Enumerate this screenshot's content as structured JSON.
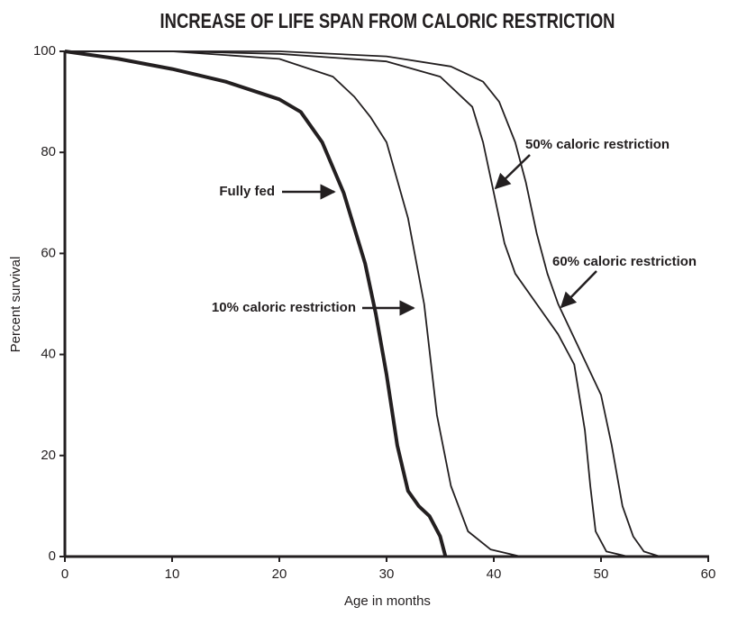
{
  "chart_data": {
    "type": "line",
    "title": "INCREASE OF LIFE SPAN FROM CALORIC RESTRICTION",
    "x_label": "Age in months",
    "y_label": "Percent survival",
    "xlim": [
      0,
      60
    ],
    "xticks": [
      0,
      10,
      20,
      30,
      40,
      50,
      60
    ],
    "ylim": [
      0,
      100
    ],
    "yticks": [
      0,
      20,
      40,
      60,
      80,
      100
    ],
    "grid": false,
    "series": [
      {
        "name": "Fully fed",
        "color": "#231f20",
        "line_width": 4,
        "x": [
          0,
          5,
          10,
          15,
          20,
          22,
          24,
          26,
          28,
          29,
          30,
          31,
          32,
          33,
          34,
          35,
          35.5
        ],
        "values": [
          100,
          98.5,
          96.5,
          94,
          90.5,
          88,
          82,
          72,
          58,
          48,
          36,
          22,
          13,
          10,
          8,
          4,
          0
        ]
      },
      {
        "name": "10% caloric restriction",
        "color": "#231f20",
        "line_width": 1.8,
        "x": [
          0,
          10,
          20,
          25,
          27,
          28.5,
          30,
          32,
          33.5,
          34.7,
          36,
          37.6,
          39.7,
          42.5
        ],
        "values": [
          100,
          100,
          98.5,
          95,
          91,
          87,
          82,
          67,
          50,
          28,
          14,
          5,
          1.4,
          0
        ]
      },
      {
        "name": "50% caloric restriction",
        "color": "#231f20",
        "line_width": 1.8,
        "x": [
          0,
          10,
          20,
          30,
          35,
          38,
          39,
          40,
          41,
          42,
          44,
          46,
          47.5,
          48.5,
          49,
          49.5,
          50.5,
          52.5
        ],
        "values": [
          100,
          100,
          99.5,
          98,
          95,
          89,
          82,
          72,
          62,
          56,
          50,
          44,
          38,
          25,
          14,
          5,
          1,
          0
        ]
      },
      {
        "name": "60% caloric restriction",
        "color": "#231f20",
        "line_width": 1.8,
        "x": [
          0,
          10,
          20,
          30,
          36,
          39,
          40.5,
          42,
          43,
          44,
          45,
          46,
          48,
          50,
          51,
          52,
          53,
          54,
          55.5
        ],
        "values": [
          100,
          100,
          100,
          99,
          97,
          94,
          90,
          82,
          74,
          64,
          56,
          50,
          41,
          32,
          22,
          10,
          4,
          1,
          0
        ]
      }
    ]
  }
}
